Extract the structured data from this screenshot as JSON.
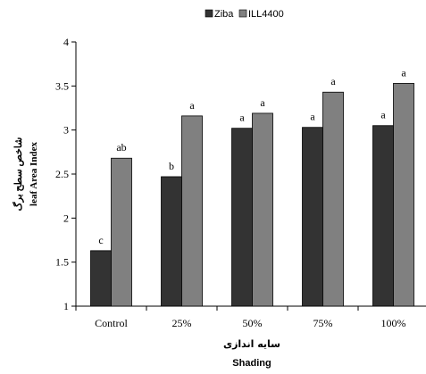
{
  "chart_data": {
    "type": "bar",
    "categories": [
      "Control",
      "25%",
      "50%",
      "75%",
      "100%"
    ],
    "series": [
      {
        "name": "Ziba",
        "color": "#333333",
        "values": [
          1.63,
          2.47,
          3.02,
          3.03,
          3.05
        ],
        "labels": [
          "c",
          "b",
          "a",
          "a",
          "a"
        ]
      },
      {
        "name": "ILL4400",
        "color": "#808080",
        "values": [
          2.68,
          3.16,
          3.19,
          3.43,
          3.53
        ],
        "labels": [
          "ab",
          "a",
          "a",
          "a",
          "a"
        ]
      }
    ],
    "ylim": [
      1,
      4
    ],
    "yticks": [
      "1",
      "1.5",
      "2",
      "2.5",
      "3",
      "3.5",
      "4"
    ],
    "ylabel_fa": "شاخص سطح برگ",
    "ylabel_en": "leaf Area Index",
    "xlabel_fa": "سایه اندازی",
    "xlabel_en": "Shading",
    "legend_position": "top-center",
    "grid": false
  }
}
